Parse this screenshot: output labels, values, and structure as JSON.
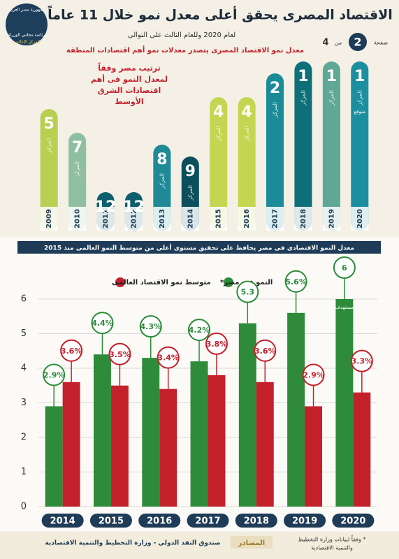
{
  "header": {
    "title": "الاقتصاد المصرى يحقق أعلى معدل نمو خلال 11 عاماً",
    "subtitle": "لعام 2020 وللعام الثالث على التوالى",
    "page_label": "صفحة",
    "page": "2",
    "of_label": "من",
    "total_pages": "4",
    "logo_lines": [
      "جمهورية مصر العربية",
      "رئاسة مجلس الوزراء",
      "المركز الإعلامي"
    ]
  },
  "chart_data": [
    {
      "type": "rank",
      "title": "معدل نمو الاقتصاد المصرى يتصدر معدلات نمو أهم اقتصادات المنطقة",
      "note_lines": [
        "ترتيب مصر وفقاً",
        "لمعدل النمو فى أهم",
        "اقتصادات الشرق",
        "الأوسط"
      ],
      "rank_label": "المركز",
      "forecast_label": "متوقع",
      "categories": [
        "2009",
        "2010",
        "2011",
        "2012",
        "2013",
        "2014",
        "2015",
        "2016",
        "2017",
        "2018",
        "2019",
        "2020"
      ],
      "values": [
        5,
        7,
        12,
        12,
        8,
        9,
        4,
        4,
        2,
        1,
        1,
        1
      ],
      "colors": [
        "#b9cf52",
        "#8fbfa0",
        "#0e5f6e",
        "#0e5f6e",
        "#1f8a96",
        "#0b4f5c",
        "#c4d651",
        "#c4d651",
        "#1b8c97",
        "#0f6f78",
        "#5fa896",
        "#1b8fa0"
      ]
    },
    {
      "type": "grouped_bar",
      "title": "معدل النمو الاقتصادى فى مصر يحافظ على تحقيق مستوى أعلى من متوسط النمو العالمى منذ 2015",
      "target_label": "مستهدف",
      "categories": [
        "2014",
        "2015",
        "2016",
        "2017",
        "2018",
        "2019",
        "2020"
      ],
      "series": [
        {
          "name": "النمو فى مصر*",
          "color": "#2e8b3a",
          "values": [
            2.9,
            4.4,
            4.3,
            4.2,
            5.3,
            5.6,
            6
          ],
          "value_labels": [
            "2.9%",
            "4.4%",
            "4.3%",
            "4.2%",
            "5.3",
            "5.6%",
            "6"
          ]
        },
        {
          "name": "متوسط نمو الاقتصاد العالمى",
          "color": "#c4202c",
          "values": [
            3.6,
            3.5,
            3.4,
            3.8,
            3.6,
            2.9,
            3.3
          ],
          "value_labels": [
            "3.6%",
            "3.5%",
            "3.4%",
            "3.8%",
            "3.6%",
            "2.9%",
            "3.3%"
          ]
        }
      ],
      "ylim": [
        0,
        6
      ],
      "yticks": [
        0,
        1,
        2,
        3,
        4,
        5,
        6
      ],
      "grid": true
    }
  ],
  "footer": {
    "sources_label": "المصادر",
    "sources": "صندوق النقد الدولى - وزارة التخطيط والتنمية الاقتصادية",
    "footnote_lines": [
      "* وفقاً لبيانات وزارة التخطيط",
      "والتنمية الاقتصادية"
    ]
  }
}
